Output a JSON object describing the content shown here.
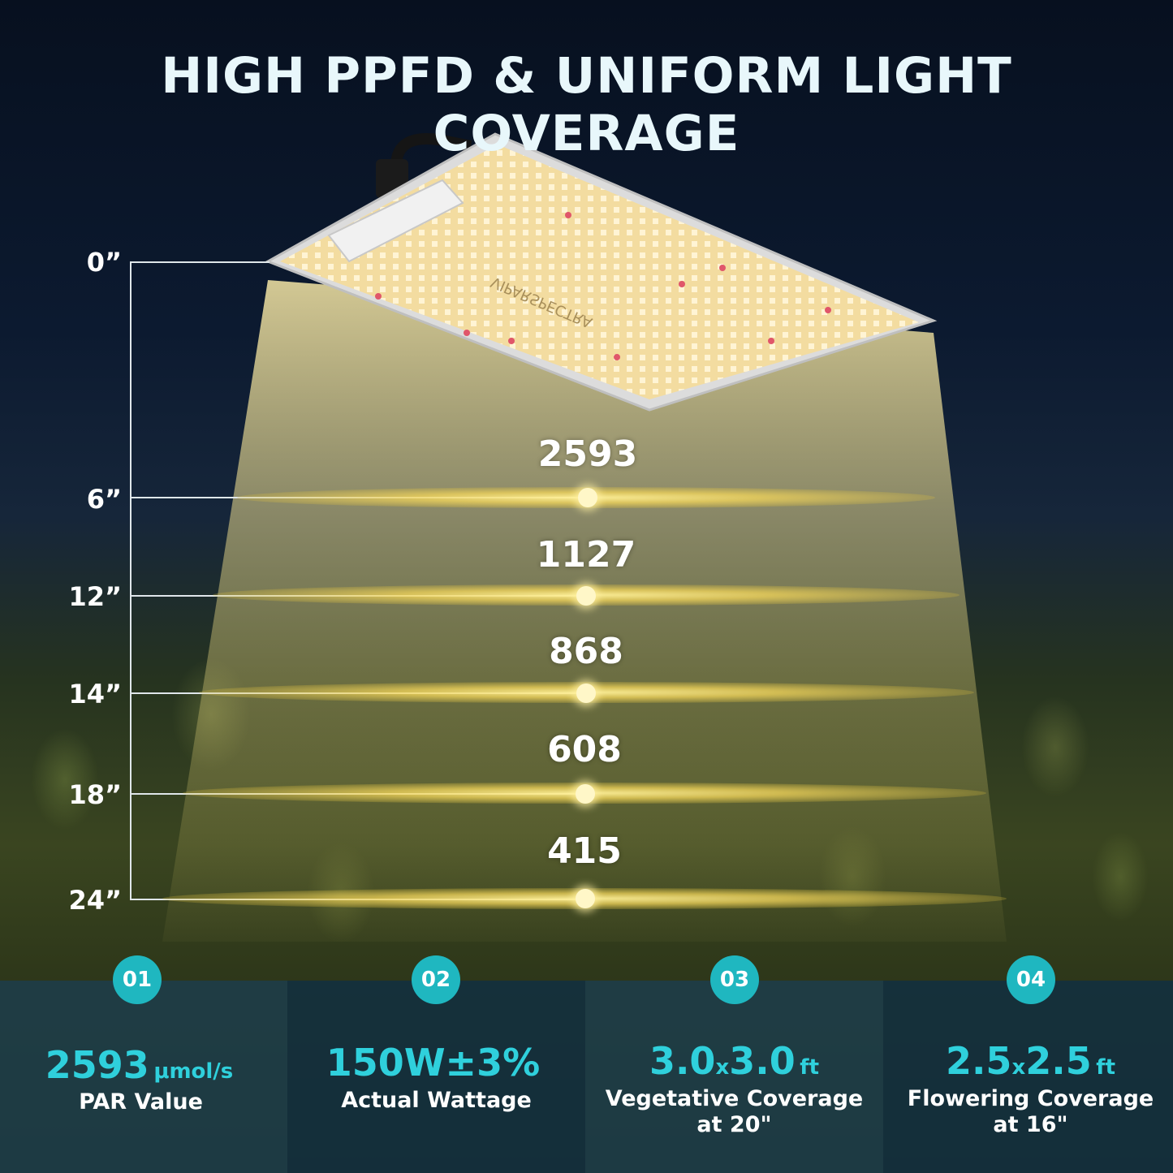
{
  "title": "HIGH PPFD & UNIFORM LIGHT COVERAGE",
  "panel": {
    "brand_text": "VIPARSPECTRA"
  },
  "heights": [
    "0”",
    "6”",
    "12”",
    "14”",
    "18”",
    "24”"
  ],
  "ppfd_readings": [
    "2593",
    "1127",
    "868",
    "608",
    "415"
  ],
  "stats": [
    {
      "badge": "01",
      "value": "2593",
      "unit": "μmol/s",
      "label_line1": "PAR Value",
      "label_line2": ""
    },
    {
      "badge": "02",
      "value": "150W±3%",
      "unit": "",
      "label_line1": "Actual Wattage",
      "label_line2": ""
    },
    {
      "badge": "03",
      "value_a": "3.0",
      "x": "x",
      "value_b": "3.0",
      "unit": "ft",
      "label_line1": "Vegetative Coverage",
      "label_line2": "at 20\""
    },
    {
      "badge": "04",
      "value_a": "2.5",
      "x": "x",
      "value_b": "2.5",
      "unit": "ft",
      "label_line1": "Flowering Coverage",
      "label_line2": "at 16\""
    }
  ],
  "colors": {
    "accent": "#2fd0dc",
    "badge": "#1fb7c0",
    "light": "#f5e3a0"
  }
}
